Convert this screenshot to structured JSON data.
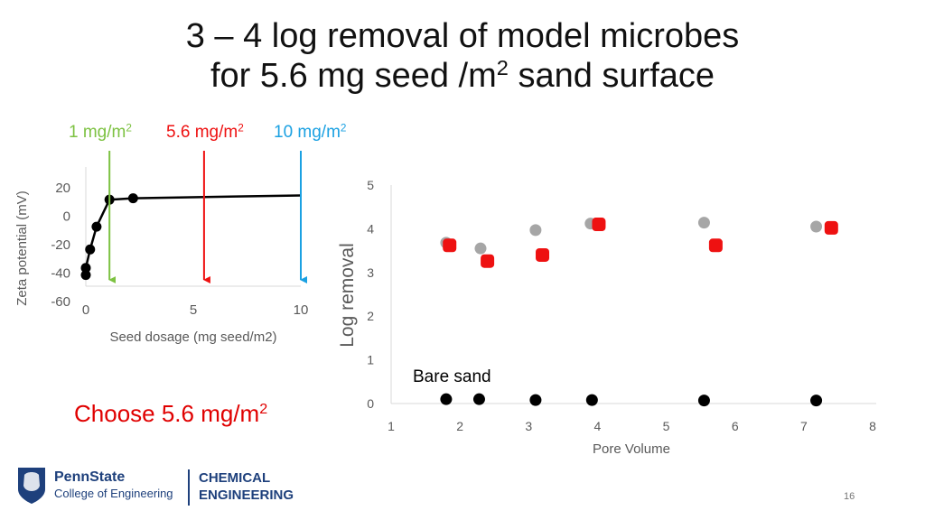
{
  "slide": {
    "title_line1": "3 – 4 log removal of model microbes",
    "title_line2_pre": "for 5.6 mg seed /m",
    "title_line2_sup": "2",
    "title_line2_post": " sand surface",
    "choose_text": "Choose 5.6 mg/m",
    "choose_sup": "2",
    "page_number": "16",
    "logo": {
      "org": "PennState",
      "college": "College of Engineering",
      "dept_line1": "CHEMICAL",
      "dept_line2": "ENGINEERING"
    }
  },
  "colors": {
    "green": "#7dc242",
    "red": "#ee1111",
    "blue": "#1ba1e2",
    "gray": "#a6a6a6",
    "black": "#000000",
    "axis": "#d9d9d9",
    "tick_text": "#595959",
    "brand": "#1e407c"
  },
  "chart_data": [
    {
      "type": "line",
      "xlabel": "Seed dosage (mg seed/m2)",
      "ylabel": "Zeta potential (mV)",
      "xlim": [
        0,
        10
      ],
      "ylim": [
        -60,
        20
      ],
      "x_ticks": [
        "0",
        "5",
        "10"
      ],
      "y_ticks": [
        "20",
        "0",
        "-20",
        "-40",
        "-60"
      ],
      "series": [
        {
          "name": "Zeta potential",
          "x": [
            0,
            0,
            0.2,
            0.5,
            1.1,
            2.2
          ],
          "y": [
            -42,
            -37,
            -24,
            -8,
            11,
            12
          ],
          "line_extends_to": [
            10,
            14
          ]
        }
      ],
      "markers": [
        {
          "label": "1 mg/m",
          "sup": "2",
          "x": 1.1,
          "color": "green"
        },
        {
          "label": "5.6 mg/m",
          "sup": "2",
          "x": 5.5,
          "color": "red"
        },
        {
          "label": "10 mg/m",
          "sup": "2",
          "x": 10,
          "color": "blue"
        }
      ],
      "grid": false
    },
    {
      "type": "scatter",
      "xlabel": "Pore Volume",
      "ylabel": "Log removal",
      "xlim": [
        1,
        8
      ],
      "ylim": [
        0,
        5
      ],
      "x_ticks": [
        "1",
        "2",
        "3",
        "4",
        "5",
        "6",
        "7",
        "8"
      ],
      "y_ticks": [
        "0",
        "1",
        "2",
        "3",
        "4",
        "5"
      ],
      "annotation": "Bare sand",
      "series": [
        {
          "name": "gray",
          "color": "gray",
          "marker": "circle",
          "x": [
            1.8,
            2.3,
            3.1,
            3.9,
            5.55,
            7.18
          ],
          "y": [
            3.68,
            3.55,
            3.97,
            4.12,
            4.14,
            4.05
          ]
        },
        {
          "name": "red",
          "color": "red",
          "marker": "rounded-square",
          "x": [
            1.85,
            2.4,
            3.2,
            4.02,
            5.72,
            7.4
          ],
          "y": [
            3.62,
            3.26,
            3.4,
            4.1,
            3.62,
            4.02
          ]
        },
        {
          "name": "Bare sand",
          "color": "black",
          "marker": "circle",
          "x": [
            1.8,
            2.28,
            3.1,
            3.92,
            5.55,
            7.18
          ],
          "y": [
            0.1,
            0.1,
            0.08,
            0.08,
            0.07,
            0.07
          ]
        }
      ],
      "grid": false
    }
  ]
}
